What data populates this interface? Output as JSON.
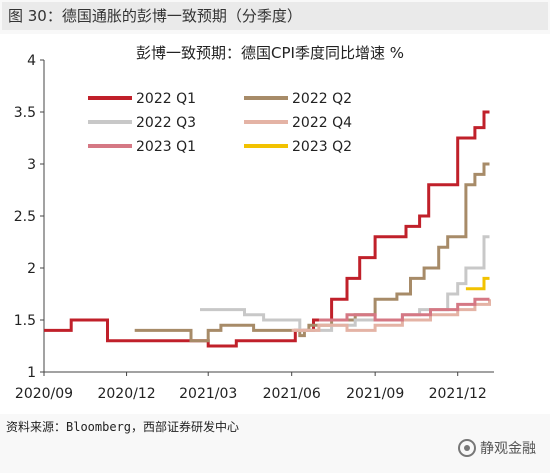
{
  "figure_title": "图 30：德国通胀的彭博一致预期（分季度）",
  "source_note": "资料来源：Bloomberg，西部证券研发中心",
  "watermark": {
    "text": "静观金融",
    "icon": "wechat-logo-icon"
  },
  "chart_data": {
    "type": "line",
    "line_style": "step",
    "title": "彭博一致预期：德国CPI季度同比增速 %",
    "xlabel": "",
    "ylabel": "",
    "x_ticks": [
      "2020/09",
      "2020/12",
      "2021/03",
      "2021/06",
      "2021/09",
      "2021/12"
    ],
    "x_range": [
      "2020-09-01",
      "2022-01-10"
    ],
    "ylim": [
      1,
      4
    ],
    "y_ticks": [
      "1",
      "1.5",
      "2",
      "2.5",
      "3",
      "3.5",
      "4"
    ],
    "grid": false,
    "legend_placement": "top-left",
    "series": [
      {
        "name": "2022 Q1",
        "color": "#c0202a",
        "x": [
          "2020-09-01",
          "2020-09-08",
          "2020-10-01",
          "2020-10-20",
          "2020-11-10",
          "2021-01-20",
          "2021-02-20",
          "2021-03-01",
          "2021-03-10",
          "2021-04-01",
          "2021-05-20",
          "2021-06-05",
          "2021-06-25",
          "2021-07-15",
          "2021-08-01",
          "2021-08-15",
          "2021-09-01",
          "2021-09-20",
          "2021-10-05",
          "2021-10-20",
          "2021-10-30",
          "2021-11-10",
          "2021-12-01",
          "2021-12-20",
          "2021-12-30",
          "2022-01-05"
        ],
        "values": [
          1.4,
          1.4,
          1.5,
          1.5,
          1.3,
          1.3,
          1.3,
          1.25,
          1.25,
          1.3,
          1.3,
          1.4,
          1.5,
          1.7,
          1.9,
          2.1,
          2.3,
          2.3,
          2.4,
          2.5,
          2.8,
          2.8,
          3.25,
          3.35,
          3.5,
          3.5
        ]
      },
      {
        "name": "2022 Q2",
        "color": "#a78b68",
        "x": [
          "2020-12-10",
          "2021-02-10",
          "2021-02-20",
          "2021-03-01",
          "2021-03-15",
          "2021-04-20",
          "2021-05-15",
          "2021-06-01",
          "2021-06-10",
          "2021-06-15",
          "2021-06-20",
          "2021-07-15",
          "2021-08-10",
          "2021-09-01",
          "2021-09-25",
          "2021-10-10",
          "2021-10-25",
          "2021-11-10",
          "2021-11-20",
          "2021-12-10",
          "2021-12-20",
          "2021-12-30",
          "2022-01-05"
        ],
        "values": [
          1.4,
          1.3,
          1.3,
          1.4,
          1.45,
          1.4,
          1.4,
          1.4,
          1.35,
          1.4,
          1.45,
          1.5,
          1.55,
          1.7,
          1.75,
          1.9,
          2.0,
          2.2,
          2.3,
          2.8,
          2.9,
          3.0,
          3.0
        ]
      },
      {
        "name": "2022 Q3",
        "color": "#c8c8c8",
        "x": [
          "2021-02-20",
          "2021-03-10",
          "2021-04-10",
          "2021-05-01",
          "2021-06-10",
          "2021-07-15",
          "2021-08-10",
          "2021-09-01",
          "2021-10-01",
          "2021-10-20",
          "2021-11-20",
          "2021-12-01",
          "2021-12-10",
          "2021-12-30",
          "2022-01-05"
        ],
        "values": [
          1.6,
          1.6,
          1.55,
          1.5,
          1.4,
          1.45,
          1.5,
          1.5,
          1.55,
          1.6,
          1.75,
          1.85,
          2.0,
          2.3,
          2.3
        ]
      },
      {
        "name": "2022 Q4",
        "color": "#e4b3a5",
        "x": [
          "2021-06-01",
          "2021-07-01",
          "2021-08-01",
          "2021-09-01",
          "2021-10-01",
          "2021-11-01",
          "2021-12-01",
          "2021-12-20",
          "2022-01-05"
        ],
        "values": [
          1.4,
          1.45,
          1.4,
          1.45,
          1.5,
          1.55,
          1.6,
          1.65,
          1.7
        ]
      },
      {
        "name": "2023 Q1",
        "color": "#d57884",
        "x": [
          "2021-07-01",
          "2021-08-01",
          "2021-09-01",
          "2021-10-01",
          "2021-11-01",
          "2021-12-01",
          "2021-12-20",
          "2022-01-05"
        ],
        "values": [
          1.5,
          1.55,
          1.5,
          1.55,
          1.6,
          1.65,
          1.7,
          1.7
        ]
      },
      {
        "name": "2023 Q2",
        "color": "#f2c200",
        "x": [
          "2021-12-10",
          "2021-12-30",
          "2022-01-05"
        ],
        "values": [
          1.8,
          1.9,
          1.9
        ]
      }
    ]
  }
}
